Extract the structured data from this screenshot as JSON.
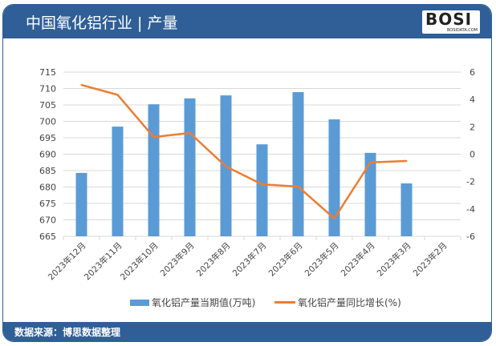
{
  "header": {
    "title": "中国氧化铝行业 | 产量",
    "logo_text": "BOSI",
    "logo_sub": "BOSIDATA.COM"
  },
  "footer": {
    "source": "数据来源：博思数据整理"
  },
  "colors": {
    "bar": "#5b9bd5",
    "line": "#ed7d31",
    "header": "#2f5f96"
  },
  "chart_data": {
    "type": "bar+line",
    "categories": [
      "2023年12月",
      "2023年11月",
      "2023年10月",
      "2023年9月",
      "2023年8月",
      "2023年7月",
      "2023年6月",
      "2023年5月",
      "2023年4月",
      "2023年3月",
      "2023年2月"
    ],
    "series": [
      {
        "name": "氧化铝产量当期值(万吨)",
        "type": "bar",
        "axis": "left",
        "values": [
          684.3,
          698.4,
          705.2,
          707.0,
          707.9,
          693.0,
          708.9,
          700.6,
          690.4,
          681.1,
          null
        ]
      },
      {
        "name": "氧化铝产量同比增长(%)",
        "type": "line",
        "axis": "right",
        "values": [
          5.06,
          4.34,
          1.25,
          1.55,
          -0.9,
          -2.2,
          -2.37,
          -4.7,
          -0.6,
          -0.5,
          null
        ]
      }
    ],
    "y_left": {
      "range": [
        665,
        715
      ],
      "ticks": [
        665,
        670,
        675,
        680,
        685,
        690,
        695,
        700,
        705,
        710,
        715
      ]
    },
    "y_right": {
      "range": [
        -6,
        6
      ],
      "ticks": [
        -6,
        -4,
        -2,
        0,
        2,
        4,
        6
      ]
    },
    "grid": true,
    "legend": "bottom"
  }
}
